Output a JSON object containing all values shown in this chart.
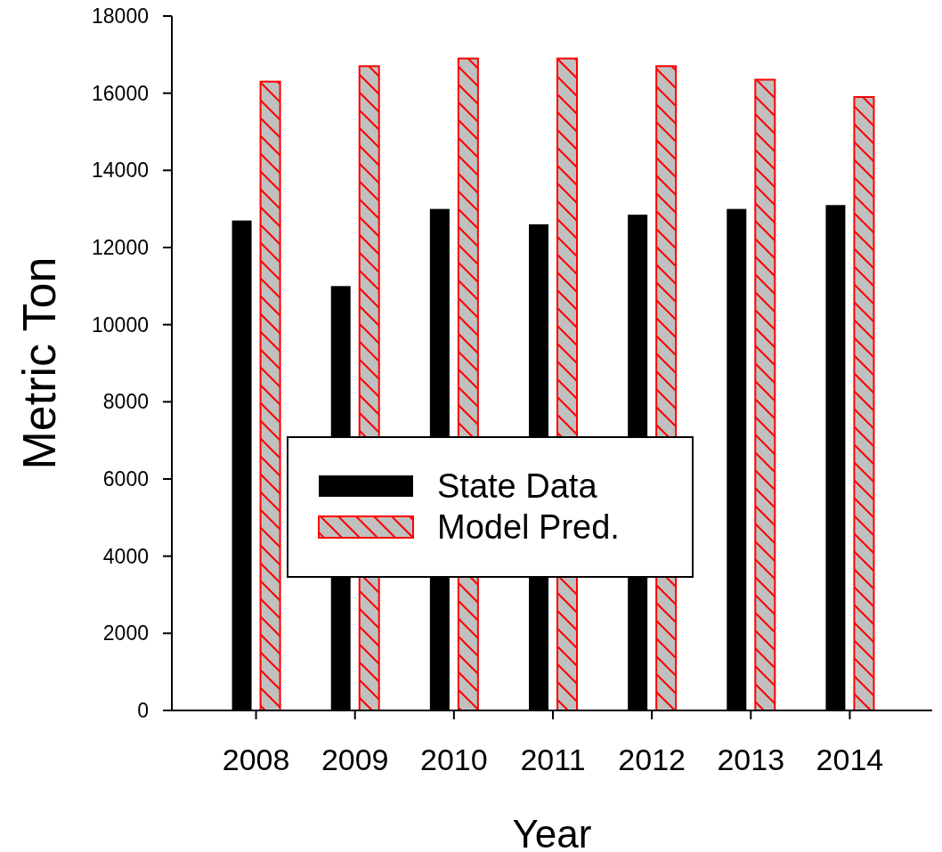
{
  "chart_data": {
    "type": "bar",
    "xlabel": "Year",
    "ylabel": "Metric Ton",
    "categories": [
      "2008",
      "2009",
      "2010",
      "2011",
      "2012",
      "2013",
      "2014"
    ],
    "series": [
      {
        "name": "State Data",
        "color": "#000000",
        "values": [
          12700,
          11000,
          13000,
          12600,
          12850,
          13000,
          13100
        ]
      },
      {
        "name": "Model Pred.",
        "color": "#ff0000",
        "values": [
          16300,
          16700,
          16900,
          16900,
          16700,
          16350,
          15900
        ]
      }
    ],
    "ylim": [
      0,
      18000
    ],
    "yticks": [
      0,
      2000,
      4000,
      6000,
      8000,
      10000,
      12000,
      14000,
      16000,
      18000
    ],
    "grid": false,
    "legend": "bottom"
  }
}
